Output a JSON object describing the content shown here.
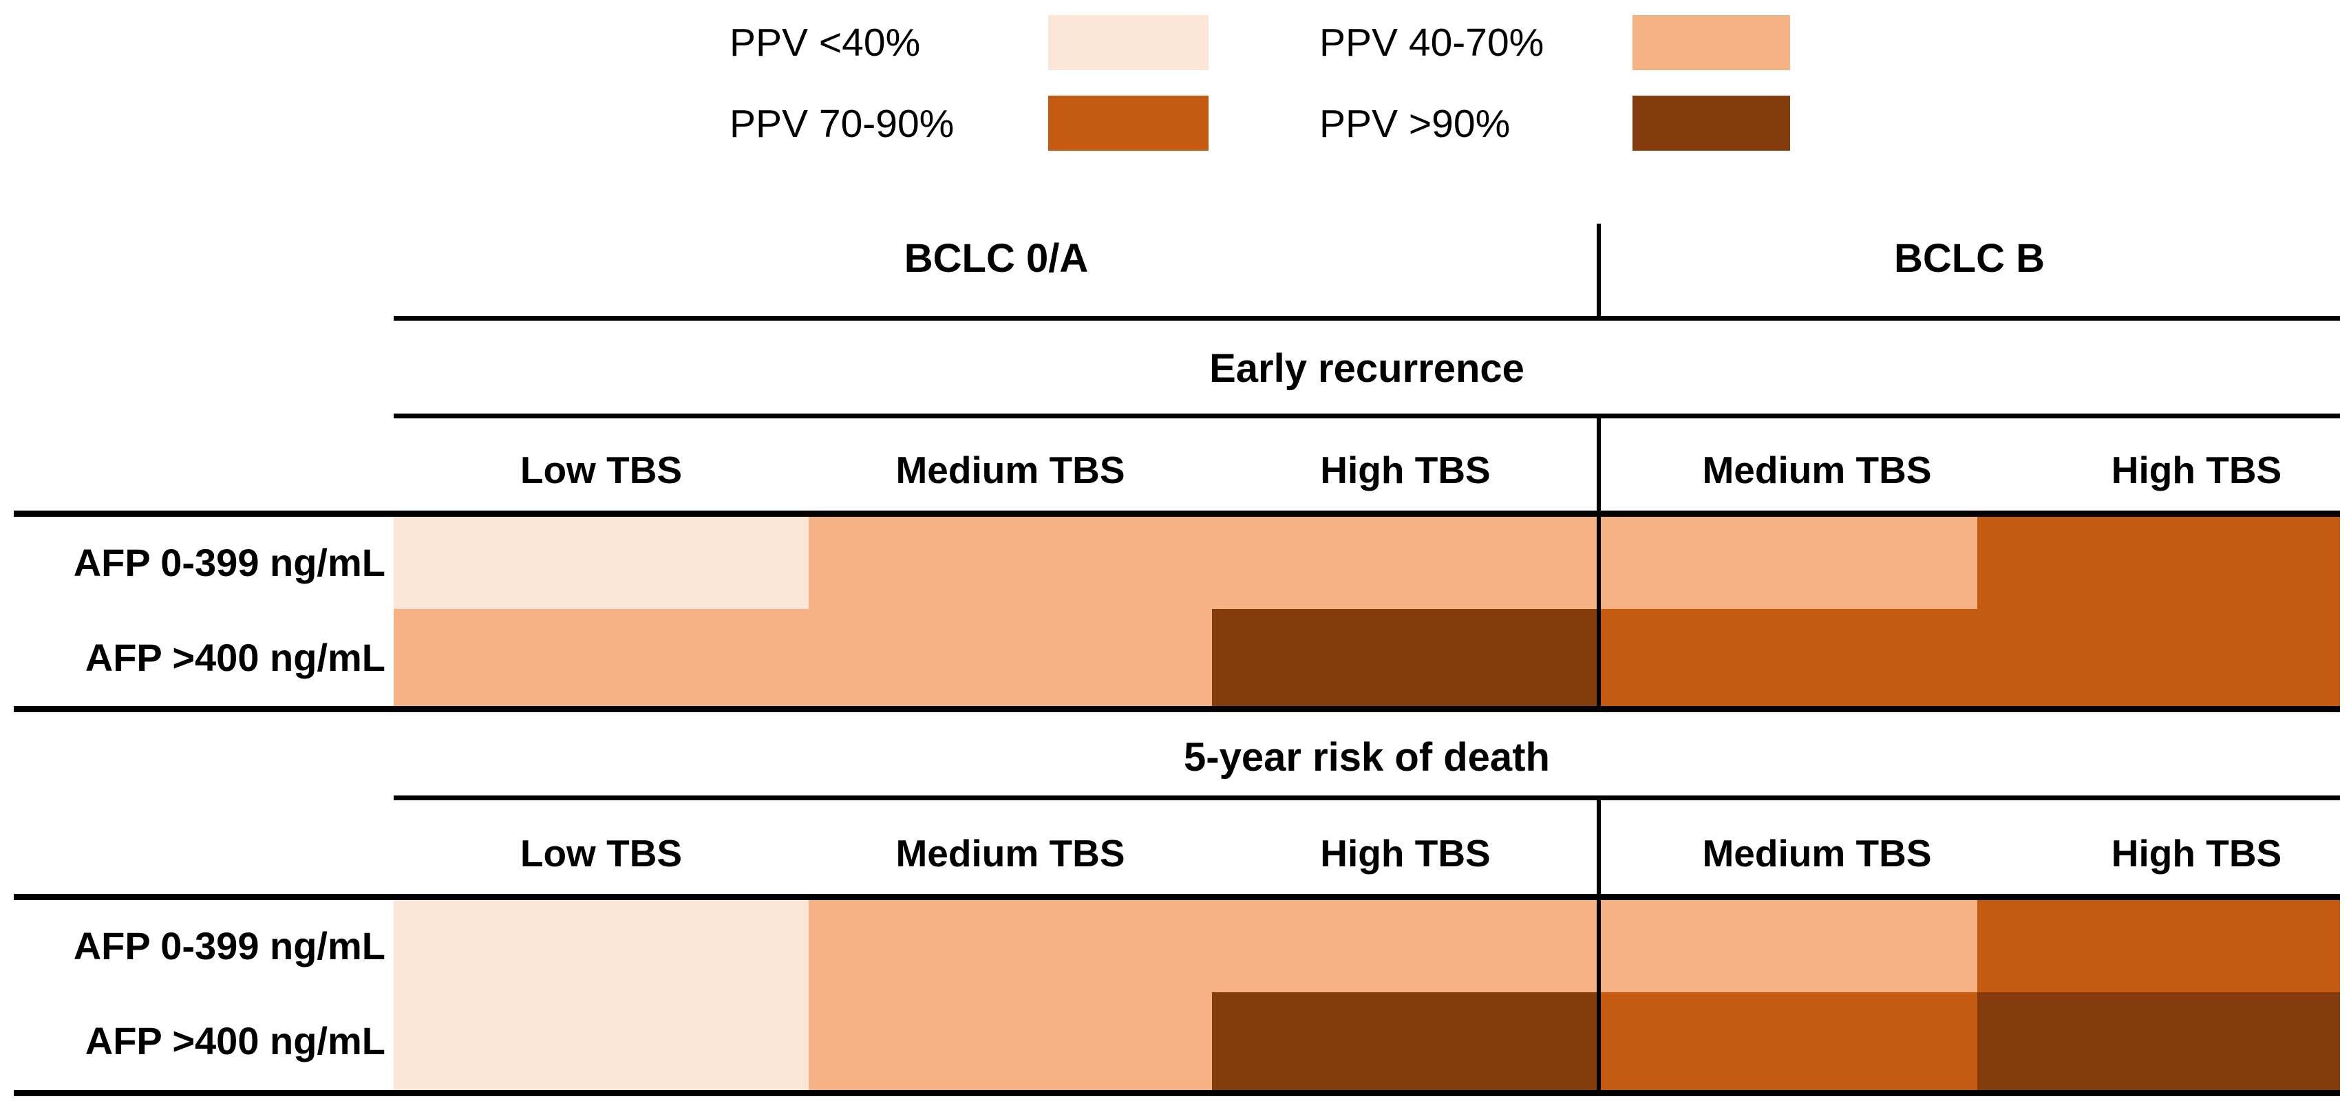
{
  "figure": {
    "background": "#ffffff",
    "text_color": "#000000",
    "line_color": "#000000"
  },
  "legend": {
    "items": [
      {
        "label": "PPV <40%",
        "color": "#FBE5D6"
      },
      {
        "label": "PPV 40-70%",
        "color": "#F4B183"
      },
      {
        "label": "PPV 70-90%",
        "color": "#C55A11"
      },
      {
        "label": "PPV >90%",
        "color": "#843C0C"
      }
    ]
  },
  "chart_data": {
    "type": "heatmap",
    "title": "",
    "legend_position": "top-center",
    "legend_categories": [
      "PPV <40%",
      "PPV 40-70%",
      "PPV 70-90%",
      "PPV >90%"
    ],
    "column_groups": [
      {
        "label": "BCLC 0/A",
        "columns": [
          "Low TBS",
          "Medium TBS",
          "High TBS"
        ]
      },
      {
        "label": "BCLC B",
        "columns": [
          "Medium TBS",
          "High TBS"
        ]
      }
    ],
    "row_labels": [
      "AFP 0-399 ng/mL",
      "AFP >400 ng/mL"
    ],
    "sections": [
      {
        "title": "Early recurrence",
        "column_headers": [
          "Low TBS",
          "Medium TBS",
          "High TBS",
          "Medium TBS",
          "High TBS"
        ],
        "rows": [
          {
            "label": "AFP 0-399 ng/mL",
            "values": [
              "PPV <40%",
              "PPV 40-70%",
              "PPV 40-70%",
              "PPV 40-70%",
              "PPV 70-90%"
            ]
          },
          {
            "label": "AFP >400 ng/mL",
            "values": [
              "PPV 40-70%",
              "PPV 40-70%",
              "PPV >90%",
              "PPV 70-90%",
              "PPV 70-90%"
            ]
          }
        ]
      },
      {
        "title": "5-year risk of death",
        "column_headers": [
          "Low TBS",
          "Medium TBS",
          "High TBS",
          "Medium TBS",
          "High TBS"
        ],
        "rows": [
          {
            "label": "AFP 0-399 ng/mL",
            "values": [
              "PPV <40%",
              "PPV 40-70%",
              "PPV 40-70%",
              "PPV 40-70%",
              "PPV 70-90%"
            ]
          },
          {
            "label": "AFP >400 ng/mL",
            "values": [
              "PPV <40%",
              "PPV 40-70%",
              "PPV >90%",
              "PPV 70-90%",
              "PPV >90%"
            ]
          }
        ]
      }
    ]
  }
}
